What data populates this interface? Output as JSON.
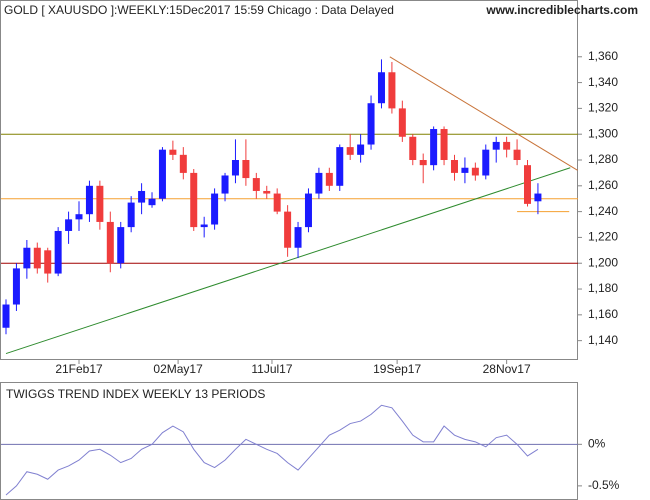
{
  "chart_data": [
    {
      "type": "candlestick",
      "title": "GOLD [ XAUUSDO ]:WEEKLY:15Dec2017 15:59 Chicago : Data Delayed",
      "source": "www.incrediblecharts.com",
      "up_color": "#1a1aff",
      "down_color": "#f03c3c",
      "open": [
        1150,
        1168,
        1196,
        1212,
        1210,
        1192,
        1225,
        1234,
        1238,
        1260,
        1232,
        1200,
        1228,
        1247,
        1245,
        1250,
        1288,
        1284,
        1270,
        1228,
        1230,
        1254,
        1268,
        1280,
        1266,
        1256,
        1254,
        1240,
        1212,
        1228,
        1254,
        1270,
        1260,
        1290,
        1284,
        1292,
        1324,
        1348,
        1320,
        1298,
        1280,
        1276,
        1304,
        1280,
        1270,
        1274,
        1268,
        1288,
        1294,
        1288,
        1276,
        1248
      ],
      "high": [
        1172,
        1200,
        1218,
        1216,
        1212,
        1228,
        1240,
        1248,
        1264,
        1264,
        1240,
        1232,
        1252,
        1262,
        1255,
        1290,
        1295,
        1290,
        1273,
        1236,
        1258,
        1270,
        1296,
        1296,
        1270,
        1260,
        1258,
        1245,
        1232,
        1258,
        1274,
        1274,
        1292,
        1300,
        1300,
        1330,
        1358,
        1356,
        1326,
        1300,
        1285,
        1306,
        1306,
        1284,
        1282,
        1278,
        1292,
        1298,
        1298,
        1296,
        1280,
        1262
      ],
      "low": [
        1145,
        1163,
        1188,
        1192,
        1185,
        1190,
        1215,
        1225,
        1232,
        1226,
        1193,
        1196,
        1224,
        1238,
        1243,
        1248,
        1280,
        1265,
        1225,
        1220,
        1226,
        1248,
        1262,
        1260,
        1250,
        1250,
        1238,
        1205,
        1204,
        1224,
        1250,
        1256,
        1256,
        1280,
        1278,
        1288,
        1320,
        1316,
        1294,
        1276,
        1262,
        1272,
        1276,
        1264,
        1262,
        1264,
        1265,
        1278,
        1282,
        1276,
        1244,
        1238
      ],
      "close": [
        1168,
        1196,
        1212,
        1196,
        1192,
        1225,
        1234,
        1238,
        1260,
        1232,
        1200,
        1228,
        1247,
        1256,
        1250,
        1288,
        1284,
        1270,
        1228,
        1230,
        1254,
        1268,
        1280,
        1266,
        1256,
        1254,
        1240,
        1212,
        1228,
        1254,
        1270,
        1260,
        1290,
        1284,
        1292,
        1324,
        1348,
        1320,
        1298,
        1280,
        1276,
        1304,
        1280,
        1270,
        1274,
        1268,
        1288,
        1294,
        1288,
        1280,
        1246,
        1254
      ],
      "ylim": [
        1125,
        1404
      ],
      "yticks": [
        {
          "value": 1140,
          "label": "1,140"
        },
        {
          "value": 1160,
          "label": "1,160"
        },
        {
          "value": 1180,
          "label": "1,180"
        },
        {
          "value": 1200,
          "label": "1,200"
        },
        {
          "value": 1220,
          "label": "1,220"
        },
        {
          "value": 1240,
          "label": "1,240"
        },
        {
          "value": 1260,
          "label": "1,260"
        },
        {
          "value": 1280,
          "label": "1,280"
        },
        {
          "value": 1300,
          "label": "1,300"
        },
        {
          "value": 1320,
          "label": "1,320"
        },
        {
          "value": 1340,
          "label": "1,340"
        },
        {
          "value": 1360,
          "label": "1,360"
        }
      ],
      "xticks": [
        {
          "value": 7,
          "label": "21Feb17"
        },
        {
          "value": 16.5,
          "label": "02May17"
        },
        {
          "value": 25.5,
          "label": "11Jul17"
        },
        {
          "value": 37.5,
          "label": "19Sep17"
        },
        {
          "value": 48,
          "label": "28Nov17"
        }
      ],
      "hlines": [
        {
          "value": 1300,
          "color": "#808000"
        },
        {
          "value": 1250,
          "color": "#f5a030"
        },
        {
          "value": 1200,
          "color": "#a00000"
        }
      ],
      "segments": [
        {
          "x": [
            49,
            54
          ],
          "y": [
            1240,
            1240
          ],
          "color": "#f5a030"
        },
        {
          "x": [
            36.8,
            54.8
          ],
          "y": [
            1360,
            1272
          ],
          "color": "#c8743a"
        },
        {
          "x": [
            0,
            54.1
          ],
          "y": [
            1130,
            1274
          ],
          "color": "#2e8b2e"
        }
      ]
    },
    {
      "type": "line",
      "title": "TWIGGS TREND INDEX WEEKLY 13 PERIODS",
      "color": "#8080d0",
      "values": [
        -0.61,
        -0.5,
        -0.33,
        -0.36,
        -0.42,
        -0.31,
        -0.26,
        -0.19,
        -0.08,
        -0.06,
        -0.13,
        -0.22,
        -0.17,
        -0.06,
        0,
        0.14,
        0.22,
        0.15,
        -0.06,
        -0.22,
        -0.28,
        -0.19,
        -0.06,
        0.06,
        0,
        -0.06,
        -0.11,
        -0.22,
        -0.31,
        -0.17,
        -0.03,
        0.11,
        0.17,
        0.25,
        0.28,
        0.36,
        0.47,
        0.44,
        0.28,
        0.11,
        0.03,
        0.03,
        0.22,
        0.11,
        0.06,
        0.03,
        -0.03,
        0.08,
        0.11,
        0,
        -0.14,
        -0.06
      ],
      "ylim": [
        -0.67,
        0.75
      ],
      "yticks": [
        {
          "value": 0,
          "label": "0%"
        },
        {
          "value": -0.5,
          "label": "-0.5%"
        }
      ],
      "zero_line_color": "#7070b0"
    }
  ]
}
